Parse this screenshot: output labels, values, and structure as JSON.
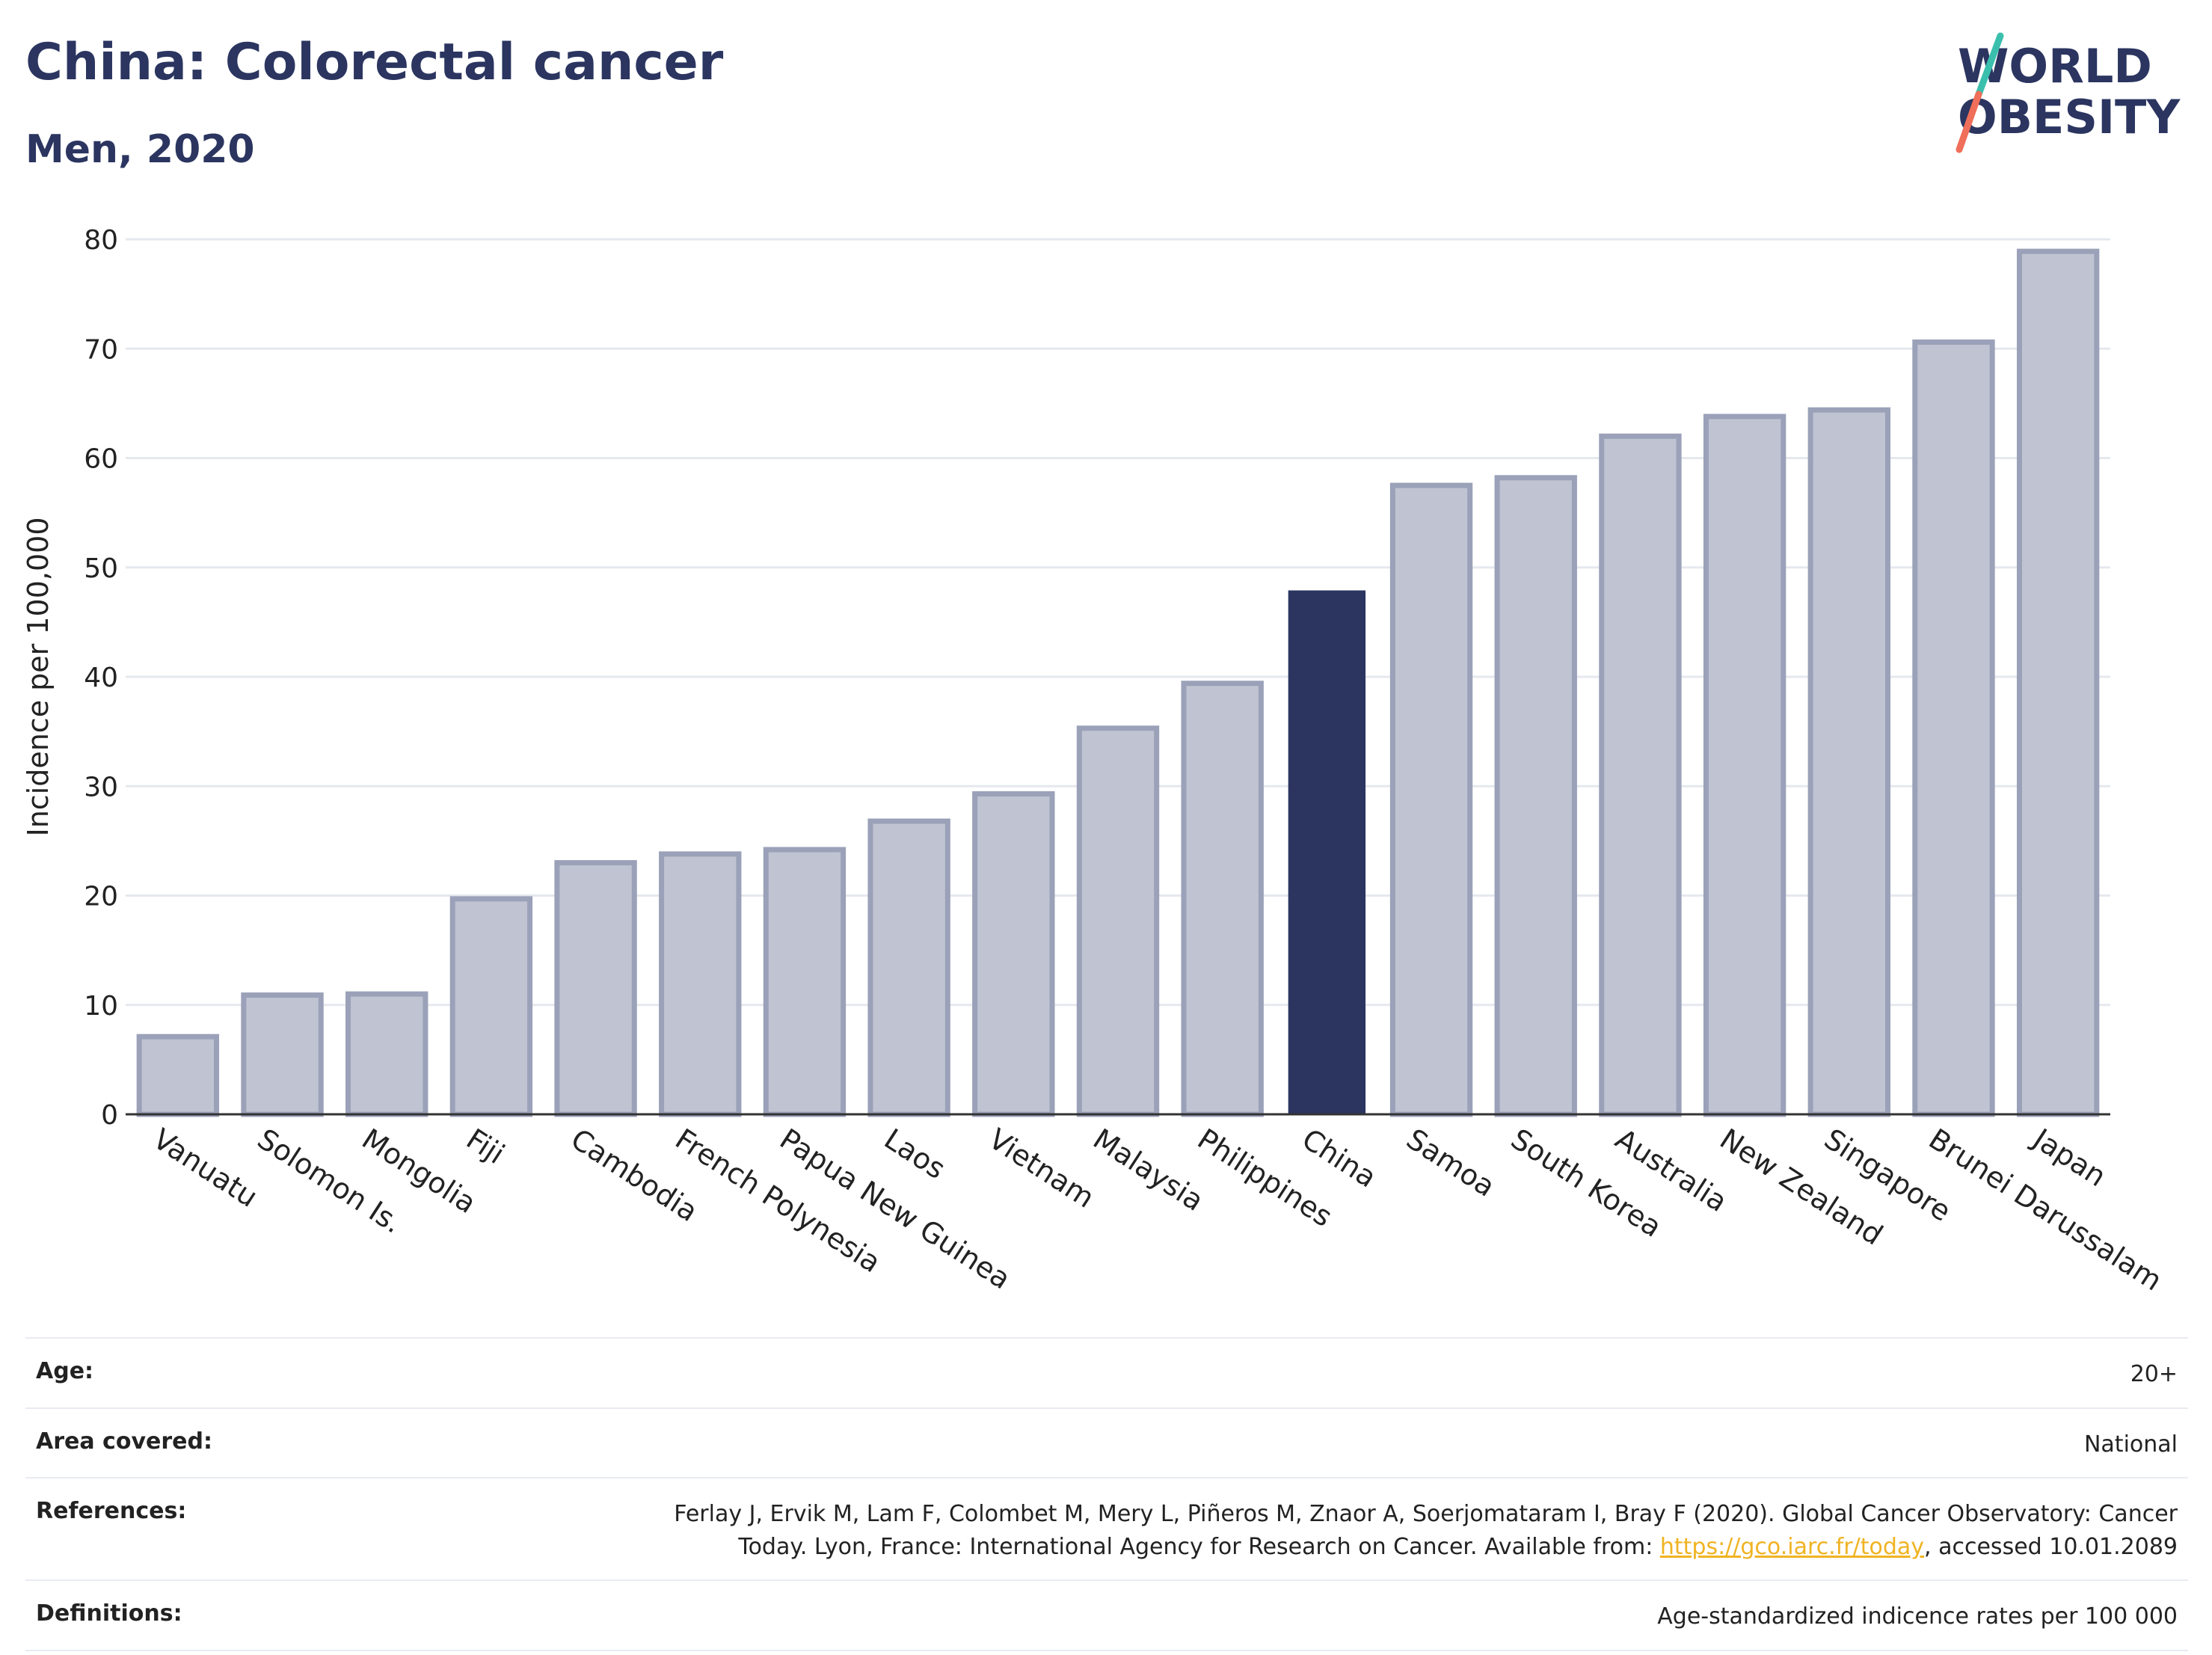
{
  "header": {
    "title": "China: Colorectal cancer",
    "subtitle": "Men, 2020"
  },
  "logo": {
    "line1": "WORLD",
    "line2": "OBESITY"
  },
  "chart_data": {
    "type": "bar",
    "title": "China: Colorectal cancer",
    "subtitle": "Men, 2020",
    "xlabel": "",
    "ylabel": "Incidence per 100,000",
    "ylim": [
      0,
      80
    ],
    "yticks": [
      0,
      10,
      20,
      30,
      40,
      50,
      60,
      70,
      80
    ],
    "grid": true,
    "categories": [
      "Vanuatu",
      "Solomon Is.",
      "Mongolia",
      "Fiji",
      "Cambodia",
      "French Polynesia",
      "Papua New Guinea",
      "Laos",
      "Vietnam",
      "Malaysia",
      "Philippines",
      "China",
      "Samoa",
      "South Korea",
      "Australia",
      "New Zealand",
      "Singapore",
      "Brunei Darussalam",
      "Japan"
    ],
    "values": [
      7.1,
      10.9,
      11.0,
      19.7,
      23.0,
      23.8,
      24.2,
      26.8,
      29.3,
      35.3,
      39.4,
      47.9,
      57.5,
      58.2,
      62.0,
      63.8,
      64.4,
      70.6,
      78.9
    ],
    "highlight": "China",
    "colors": {
      "bar": "#c0c4d2",
      "bar_border": "#9aa1b8",
      "highlight": "#2b3560",
      "grid": "#e6e8ef",
      "axis": "#333333"
    }
  },
  "details": {
    "age": {
      "label": "Age:",
      "value": "20+"
    },
    "area": {
      "label": "Area covered:",
      "value": "National"
    },
    "references": {
      "label": "References:",
      "line1": "Ferlay J, Ervik M, Lam F, Colombet M, Mery L, Piñeros M, Znaor A, Soerjomataram I, Bray F (2020). Global Cancer Observatory: Cancer",
      "line2_pre": "Today. Lyon, France: International Agency for Research on Cancer. Available from: ",
      "link": "https://gco.iarc.fr/today",
      "line2_post": ", accessed 10.01.2089"
    },
    "definitions": {
      "label": "Definitions:",
      "value": "Age-standardized indicence rates per 100 000"
    }
  }
}
